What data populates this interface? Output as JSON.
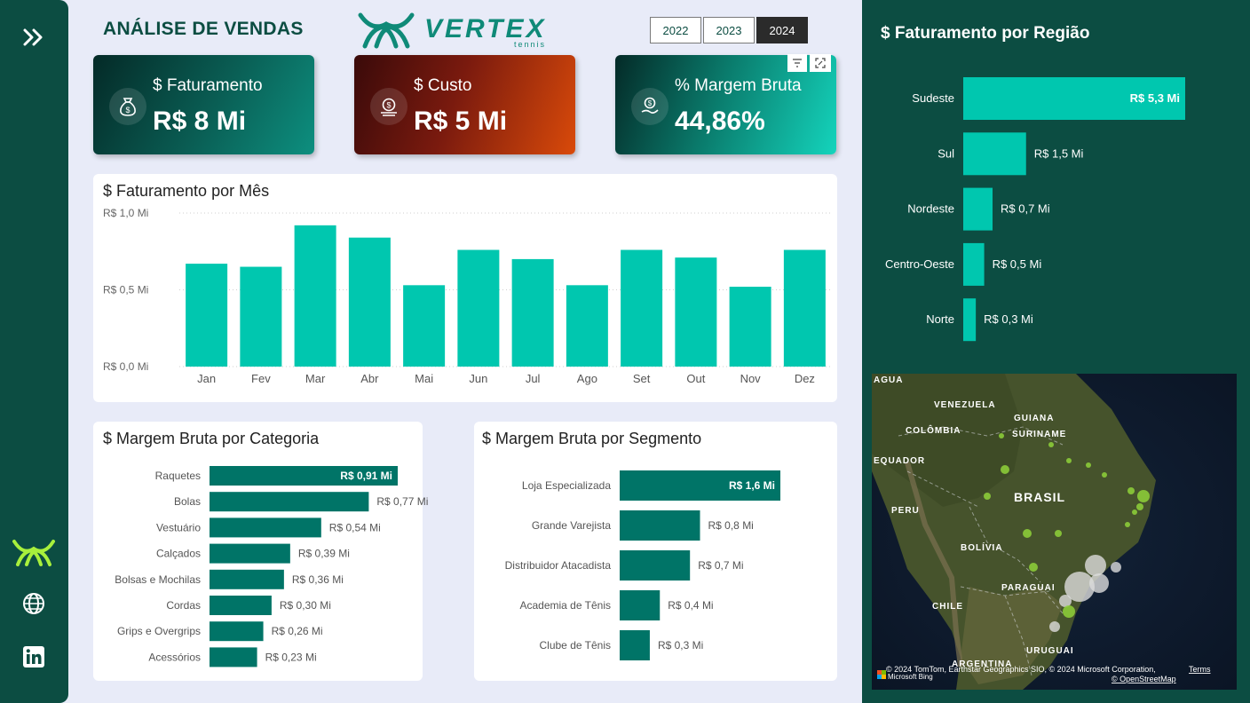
{
  "header": {
    "title": "ANÁLISE DE VENDAS",
    "logo_text": "VERTEX",
    "logo_sub": "tennis"
  },
  "years": [
    {
      "label": "2022",
      "active": false
    },
    {
      "label": "2023",
      "active": false
    },
    {
      "label": "2024",
      "active": true
    }
  ],
  "kpis": [
    {
      "label": "$ Faturamento",
      "value": "R$ 8 Mi",
      "icon": "money-bag-icon"
    },
    {
      "label": "$ Custo",
      "value": "R$ 5 Mi",
      "icon": "money-hand-icon"
    },
    {
      "label": "% Margem Bruta",
      "value": "44,86%",
      "icon": "coin-hand-icon"
    }
  ],
  "colors": {
    "sidebar": "#0c4d42",
    "bar_primary": "#00c7af",
    "bar_dark": "#007467",
    "background": "#e8ebf8"
  },
  "monthly": {
    "title": "$ Faturamento por Mês",
    "chart_data": {
      "type": "bar",
      "categories": [
        "Jan",
        "Fev",
        "Mar",
        "Abr",
        "Mai",
        "Jun",
        "Jul",
        "Ago",
        "Set",
        "Out",
        "Nov",
        "Dez"
      ],
      "values": [
        0.67,
        0.65,
        0.92,
        0.84,
        0.53,
        0.76,
        0.7,
        0.53,
        0.76,
        0.71,
        0.52,
        0.76
      ],
      "yticks": [
        "R$ 0,0 Mi",
        "R$ 0,5 Mi",
        "R$ 1,0 Mi"
      ],
      "ylim": [
        0,
        1.0
      ],
      "grid": true
    }
  },
  "categoria": {
    "title": "$ Margem Bruta por Categoria",
    "chart_data": {
      "type": "bar",
      "orientation": "horizontal",
      "categories": [
        "Raquetes",
        "Bolas",
        "Vestuário",
        "Calçados",
        "Bolsas e Mochilas",
        "Cordas",
        "Grips e Overgrips",
        "Acessórios"
      ],
      "values": [
        0.91,
        0.77,
        0.54,
        0.39,
        0.36,
        0.3,
        0.26,
        0.23
      ],
      "labels": [
        "R$ 0,91 Mi",
        "R$ 0,77 Mi",
        "R$ 0,54 Mi",
        "R$ 0,39 Mi",
        "R$ 0,36 Mi",
        "R$ 0,30 Mi",
        "R$ 0,26 Mi",
        "R$ 0,23 Mi"
      ]
    }
  },
  "segmento": {
    "title": "$ Margem Bruta por Segmento",
    "chart_data": {
      "type": "bar",
      "orientation": "horizontal",
      "categories": [
        "Loja Especializada",
        "Grande Varejista",
        "Distribuidor Atacadista",
        "Academia de Tênis",
        "Clube de Tênis"
      ],
      "values": [
        1.6,
        0.8,
        0.7,
        0.4,
        0.3
      ],
      "labels": [
        "R$ 1,6 Mi",
        "R$ 0,8 Mi",
        "R$ 0,7 Mi",
        "R$ 0,4 Mi",
        "R$ 0,3 Mi"
      ]
    }
  },
  "regiao": {
    "title": "$ Faturamento por Região",
    "chart_data": {
      "type": "bar",
      "orientation": "horizontal",
      "categories": [
        "Sudeste",
        "Sul",
        "Nordeste",
        "Centro-Oeste",
        "Norte"
      ],
      "values": [
        5.3,
        1.5,
        0.7,
        0.5,
        0.3
      ],
      "labels": [
        "R$ 5,3 Mi",
        "R$ 1,5 Mi",
        "R$ 0,7 Mi",
        "R$ 0,5 Mi",
        "R$ 0,3 Mi"
      ]
    }
  },
  "map": {
    "countries": [
      "VENEZUELA",
      "GUIANA",
      "COLÔMBIA",
      "SURINAME",
      "EQUADOR",
      "PERU",
      "BRASIL",
      "BOLÍVIA",
      "PARAGUAI",
      "CHILE",
      "URUGUAI",
      "ARGENTINA"
    ],
    "partial_label": "AGUA",
    "attribution": "© 2024 TomTom, Earthstar Geographics SIO, © 2024 Microsoft Corporation,",
    "terms": "Terms",
    "osm": "© OpenStreetMap",
    "bing": "Microsoft Bing"
  }
}
